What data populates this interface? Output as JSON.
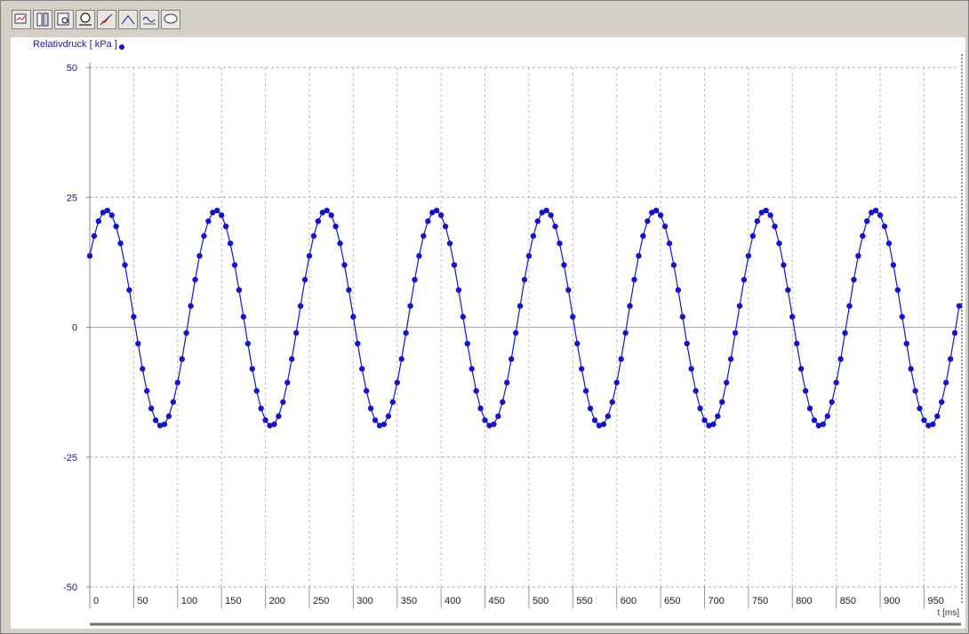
{
  "chart_data": {
    "type": "line",
    "ylabel": "Relativdruck [ kPa ]",
    "xlabel": "t [ms]",
    "xlim": [
      0,
      990
    ],
    "ylim": [
      -50,
      50
    ],
    "xticks": [
      0,
      50,
      100,
      150,
      200,
      250,
      300,
      350,
      400,
      450,
      500,
      550,
      600,
      650,
      700,
      750,
      800,
      850,
      900,
      950
    ],
    "yticks": [
      -50,
      -25,
      0,
      25,
      50
    ],
    "grid": true,
    "x": [
      0,
      5,
      10,
      15,
      20,
      25,
      30,
      35,
      40,
      45,
      50,
      55,
      60,
      65,
      70,
      75,
      80,
      85,
      90,
      95,
      100,
      105,
      110,
      115,
      120,
      125,
      130,
      135,
      140,
      145,
      150,
      155,
      160,
      165,
      170,
      175,
      180,
      185,
      190,
      195,
      200,
      205,
      210,
      215,
      220,
      225,
      230,
      235,
      240,
      245,
      250,
      255,
      260,
      265,
      270,
      275,
      280,
      285,
      290,
      295,
      300,
      305,
      310,
      315,
      320,
      325,
      330,
      335,
      340,
      345,
      350,
      355,
      360,
      365,
      370,
      375,
      380,
      385,
      390,
      395,
      400,
      405,
      410,
      415,
      420,
      425,
      430,
      435,
      440,
      445,
      450,
      455,
      460,
      465,
      470,
      475,
      480,
      485,
      490,
      495,
      500,
      505,
      510,
      515,
      520,
      525,
      530,
      535,
      540,
      545,
      550,
      555,
      560,
      565,
      570,
      575,
      580,
      585,
      590,
      595,
      600,
      605,
      610,
      615,
      620,
      625,
      630,
      635,
      640,
      645,
      650,
      655,
      660,
      665,
      670,
      675,
      680,
      685,
      690,
      695,
      700,
      705,
      710,
      715,
      720,
      725,
      730,
      735,
      740,
      745,
      750,
      755,
      760,
      765,
      770,
      775,
      780,
      785,
      790,
      795,
      800,
      805,
      810,
      815,
      820,
      825,
      830,
      835,
      840,
      845,
      850,
      855,
      860,
      865,
      870,
      875,
      880,
      885,
      890,
      895,
      900,
      905,
      910,
      915,
      920,
      925,
      930,
      935,
      940,
      945,
      950,
      955,
      960,
      965,
      970,
      975,
      980,
      985,
      990
    ],
    "series": [
      {
        "name": "Relativdruck",
        "color": "#1515c8",
        "values": [
          13.73,
          17.57,
          20.41,
          22.08,
          22.47,
          21.56,
          19.41,
          16.14,
          11.97,
          7.16,
          2.01,
          -3.16,
          -8.02,
          -12.26,
          -15.63,
          -17.9,
          -18.94,
          -18.68,
          -17.13,
          -14.4,
          -10.66,
          -6.13,
          -1.11,
          4.09,
          9.15,
          13.73,
          17.57,
          20.41,
          22.08,
          22.47,
          21.56,
          19.41,
          16.14,
          11.97,
          7.16,
          2.01,
          -3.16,
          -8.02,
          -12.26,
          -15.63,
          -17.9,
          -18.94,
          -18.68,
          -17.13,
          -14.4,
          -10.66,
          -6.13,
          -1.11,
          4.09,
          9.15,
          13.73,
          17.57,
          20.41,
          22.08,
          22.47,
          21.56,
          19.41,
          16.14,
          11.97,
          7.16,
          2.01,
          -3.16,
          -8.02,
          -12.26,
          -15.63,
          -17.9,
          -18.94,
          -18.68,
          -17.13,
          -14.4,
          -10.66,
          -6.13,
          -1.11,
          4.09,
          9.15,
          13.73,
          17.57,
          20.41,
          22.08,
          22.47,
          21.56,
          19.41,
          16.14,
          11.97,
          7.16,
          2.01,
          -3.16,
          -8.02,
          -12.26,
          -15.63,
          -17.9,
          -18.94,
          -18.68,
          -17.13,
          -14.4,
          -10.66,
          -6.13,
          -1.11,
          4.09,
          9.15,
          13.73,
          17.57,
          20.41,
          22.08,
          22.47,
          21.56,
          19.41,
          16.14,
          11.97,
          7.16,
          2.01,
          -3.16,
          -8.02,
          -12.26,
          -15.63,
          -17.9,
          -18.94,
          -18.68,
          -17.13,
          -14.4,
          -10.66,
          -6.13,
          -1.11,
          4.09,
          9.15,
          13.73,
          17.57,
          20.41,
          22.08,
          22.47,
          21.56,
          19.41,
          16.14,
          11.97,
          7.16,
          2.01,
          -3.16,
          -8.02,
          -12.26,
          -15.63,
          -17.9,
          -18.94,
          -18.68,
          -17.13,
          -14.4,
          -10.66,
          -6.13,
          -1.11,
          4.09,
          9.15,
          13.73,
          17.57,
          20.41,
          22.08,
          22.47,
          21.56,
          19.41,
          16.14,
          11.97,
          7.16,
          2.01,
          -3.16,
          -8.02,
          -12.26,
          -15.63,
          -17.9,
          -18.94,
          -18.68,
          -17.13,
          -14.4,
          -10.66,
          -6.13,
          -1.11,
          4.09,
          9.15,
          13.73,
          17.57,
          20.41,
          22.08,
          22.47,
          21.56,
          19.41,
          16.14,
          11.97,
          7.16,
          2.01,
          -3.16,
          -8.02,
          -12.26,
          -15.63,
          -17.9,
          -18.94,
          -18.68,
          -17.13,
          -14.4,
          -10.66,
          -6.13,
          -1.11,
          4.09
        ]
      }
    ]
  }
}
